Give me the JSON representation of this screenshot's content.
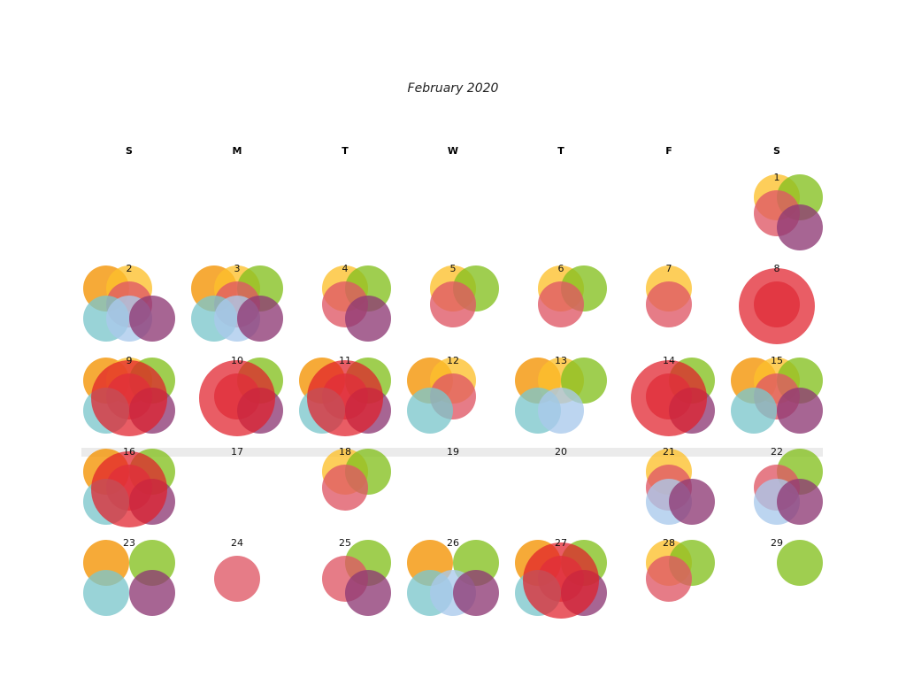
{
  "chart_data": {
    "type": "calendar-bubble",
    "title": "February 2020",
    "weekday_labels": [
      "S",
      "M",
      "T",
      "W",
      "T",
      "F",
      "S"
    ],
    "first_weekday_index": 6,
    "days_in_month": 29,
    "highlight_week": 4,
    "categories": [
      {
        "key": "orange",
        "color": "#f39200"
      },
      {
        "key": "yellow",
        "color": "#fcc02b"
      },
      {
        "key": "green",
        "color": "#84c01f"
      },
      {
        "key": "pink",
        "color": "#df5765"
      },
      {
        "key": "teal",
        "color": "#7cc7cc"
      },
      {
        "key": "blue",
        "color": "#a9c9ec"
      },
      {
        "key": "purple",
        "color": "#8e3a74"
      },
      {
        "key": "red",
        "color": "#e01e2a"
      }
    ],
    "days": [
      {
        "day": 1,
        "present": [
          "yellow",
          "green",
          "pink",
          "purple"
        ],
        "red": 0
      },
      {
        "day": 2,
        "present": [
          "orange",
          "yellow",
          "pink",
          "teal",
          "blue",
          "purple"
        ],
        "red": 0
      },
      {
        "day": 3,
        "present": [
          "orange",
          "yellow",
          "green",
          "pink",
          "teal",
          "blue",
          "purple"
        ],
        "red": 0
      },
      {
        "day": 4,
        "present": [
          "yellow",
          "green",
          "pink",
          "purple"
        ],
        "red": 0
      },
      {
        "day": 5,
        "present": [
          "yellow",
          "green",
          "pink"
        ],
        "red": 0
      },
      {
        "day": 6,
        "present": [
          "yellow",
          "green",
          "pink"
        ],
        "red": 0
      },
      {
        "day": 7,
        "present": [
          "yellow",
          "pink"
        ],
        "red": 0
      },
      {
        "day": 8,
        "present": [
          "pink"
        ],
        "red": 3
      },
      {
        "day": 9,
        "present": [
          "orange",
          "yellow",
          "green",
          "teal",
          "pink",
          "purple"
        ],
        "red": 3
      },
      {
        "day": 10,
        "present": [
          "green",
          "pink",
          "purple"
        ],
        "red": 3
      },
      {
        "day": 11,
        "present": [
          "orange",
          "green",
          "teal",
          "pink",
          "purple"
        ],
        "red": 3
      },
      {
        "day": 12,
        "present": [
          "orange",
          "yellow",
          "teal",
          "pink"
        ],
        "red": 0
      },
      {
        "day": 13,
        "present": [
          "orange",
          "yellow",
          "green",
          "teal",
          "blue"
        ],
        "red": 0
      },
      {
        "day": 14,
        "present": [
          "green",
          "pink",
          "purple"
        ],
        "red": 3
      },
      {
        "day": 15,
        "present": [
          "orange",
          "yellow",
          "green",
          "teal",
          "pink",
          "purple"
        ],
        "red": 0
      },
      {
        "day": 16,
        "present": [
          "orange",
          "green",
          "teal",
          "pink",
          "purple"
        ],
        "red": 3
      },
      {
        "day": 17,
        "present": [],
        "red": 0
      },
      {
        "day": 18,
        "present": [
          "yellow",
          "green",
          "pink"
        ],
        "red": 0
      },
      {
        "day": 19,
        "present": [],
        "red": 0
      },
      {
        "day": 20,
        "present": [],
        "red": 0
      },
      {
        "day": 21,
        "present": [
          "yellow",
          "pink",
          "blue",
          "purple"
        ],
        "red": 0
      },
      {
        "day": 22,
        "present": [
          "green",
          "pink",
          "blue",
          "purple"
        ],
        "red": 0
      },
      {
        "day": 23,
        "present": [
          "orange",
          "green",
          "teal",
          "purple"
        ],
        "red": 0
      },
      {
        "day": 24,
        "present": [
          "pink"
        ],
        "red": 0
      },
      {
        "day": 25,
        "present": [
          "green",
          "pink",
          "purple"
        ],
        "red": 0
      },
      {
        "day": 26,
        "present": [
          "orange",
          "green",
          "teal",
          "blue",
          "purple"
        ],
        "red": 0
      },
      {
        "day": 27,
        "present": [
          "orange",
          "green",
          "teal",
          "pink",
          "purple"
        ],
        "red": 3
      },
      {
        "day": 28,
        "present": [
          "yellow",
          "green",
          "pink"
        ],
        "red": 0
      },
      {
        "day": 29,
        "present": [
          "green"
        ],
        "red": 0
      }
    ]
  }
}
